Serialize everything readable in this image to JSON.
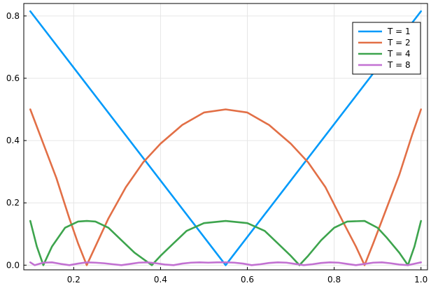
{
  "chart_data": {
    "type": "line",
    "title": "",
    "xlabel": "",
    "ylabel": "",
    "xlim": [
      0.085,
      1.015
    ],
    "ylim": [
      -0.015,
      0.84
    ],
    "xticks": [
      0.2,
      0.4,
      0.6,
      0.8,
      1.0
    ],
    "xtick_labels": [
      "0.2",
      "0.4",
      "0.6",
      "0.8",
      "1.0"
    ],
    "yticks": [
      0.0,
      0.2,
      0.4,
      0.6,
      0.8
    ],
    "ytick_labels": [
      "0.0",
      "0.2",
      "0.4",
      "0.6",
      "0.8"
    ],
    "grid": true,
    "legend_position": "top-right",
    "series": [
      {
        "name": "T = 1",
        "color": "#009AFA",
        "x": [
          0.1,
          0.55,
          1.0
        ],
        "y": [
          0.815,
          0.0,
          0.815
        ]
      },
      {
        "name": "T = 2",
        "color": "#E26F46",
        "x": [
          0.1,
          0.13,
          0.16,
          0.19,
          0.21,
          0.23,
          0.25,
          0.28,
          0.32,
          0.36,
          0.4,
          0.45,
          0.5,
          0.55,
          0.6,
          0.65,
          0.7,
          0.74,
          0.78,
          0.82,
          0.85,
          0.87,
          0.89,
          0.92,
          0.95,
          0.98,
          1.0
        ],
        "y": [
          0.5,
          0.39,
          0.28,
          0.15,
          0.07,
          0.0,
          0.06,
          0.15,
          0.25,
          0.33,
          0.39,
          0.45,
          0.49,
          0.5,
          0.49,
          0.45,
          0.39,
          0.33,
          0.25,
          0.14,
          0.06,
          0.0,
          0.07,
          0.18,
          0.29,
          0.42,
          0.5
        ]
      },
      {
        "name": "T = 4",
        "color": "#3DA44D",
        "x": [
          0.1,
          0.115,
          0.13,
          0.15,
          0.18,
          0.21,
          0.23,
          0.25,
          0.28,
          0.31,
          0.34,
          0.36,
          0.38,
          0.4,
          0.43,
          0.46,
          0.5,
          0.55,
          0.6,
          0.64,
          0.67,
          0.7,
          0.72,
          0.74,
          0.77,
          0.8,
          0.83,
          0.87,
          0.9,
          0.92,
          0.95,
          0.97,
          0.985,
          1.0
        ],
        "y": [
          0.142,
          0.06,
          0.0,
          0.06,
          0.12,
          0.14,
          0.142,
          0.14,
          0.12,
          0.08,
          0.04,
          0.02,
          0.0,
          0.03,
          0.07,
          0.11,
          0.135,
          0.142,
          0.135,
          0.11,
          0.07,
          0.03,
          0.0,
          0.03,
          0.08,
          0.12,
          0.14,
          0.142,
          0.12,
          0.09,
          0.04,
          0.0,
          0.06,
          0.142
        ]
      },
      {
        "name": "T = 8",
        "color": "#C271D2",
        "x": [
          0.1,
          0.11,
          0.13,
          0.15,
          0.17,
          0.19,
          0.21,
          0.23,
          0.25,
          0.27,
          0.29,
          0.31,
          0.33,
          0.35,
          0.37,
          0.39,
          0.41,
          0.43,
          0.45,
          0.47,
          0.49,
          0.51,
          0.53,
          0.55,
          0.57,
          0.59,
          0.61,
          0.63,
          0.65,
          0.67,
          0.69,
          0.71,
          0.73,
          0.75,
          0.77,
          0.79,
          0.81,
          0.83,
          0.85,
          0.87,
          0.89,
          0.91,
          0.93,
          0.95,
          0.97,
          0.99,
          1.0
        ],
        "y": [
          0.009,
          0.0,
          0.008,
          0.009,
          0.004,
          0.0,
          0.005,
          0.009,
          0.008,
          0.006,
          0.003,
          0.0,
          0.004,
          0.008,
          0.009,
          0.006,
          0.002,
          0.0,
          0.005,
          0.008,
          0.009,
          0.008,
          0.009,
          0.009,
          0.008,
          0.005,
          0.0,
          0.003,
          0.007,
          0.009,
          0.008,
          0.004,
          0.0,
          0.003,
          0.007,
          0.009,
          0.008,
          0.004,
          0.0,
          0.004,
          0.008,
          0.009,
          0.006,
          0.002,
          0.0,
          0.006,
          0.009
        ]
      }
    ]
  }
}
